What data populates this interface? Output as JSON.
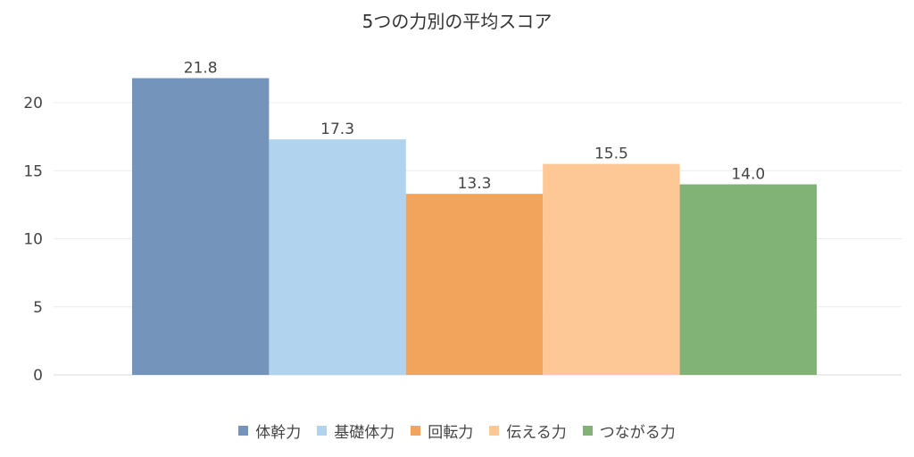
{
  "chart_data": {
    "type": "bar",
    "title": "5つの力別の平均スコア",
    "categories": [
      "体幹力",
      "基礎体力",
      "回転力",
      "伝える力",
      "つながる力"
    ],
    "values": [
      21.8,
      17.3,
      13.3,
      15.5,
      14.0
    ],
    "value_labels": [
      "21.8",
      "17.3",
      "13.3",
      "15.5",
      "14.0"
    ],
    "colors": [
      "#7594bb",
      "#b1d3ee",
      "#f2a35c",
      "#fdc895",
      "#80b375"
    ],
    "ylim": [
      0,
      22
    ],
    "yticks": [
      0,
      5,
      10,
      15,
      20
    ],
    "grid": true,
    "legend_position": "bottom",
    "xlabel": "",
    "ylabel": ""
  }
}
